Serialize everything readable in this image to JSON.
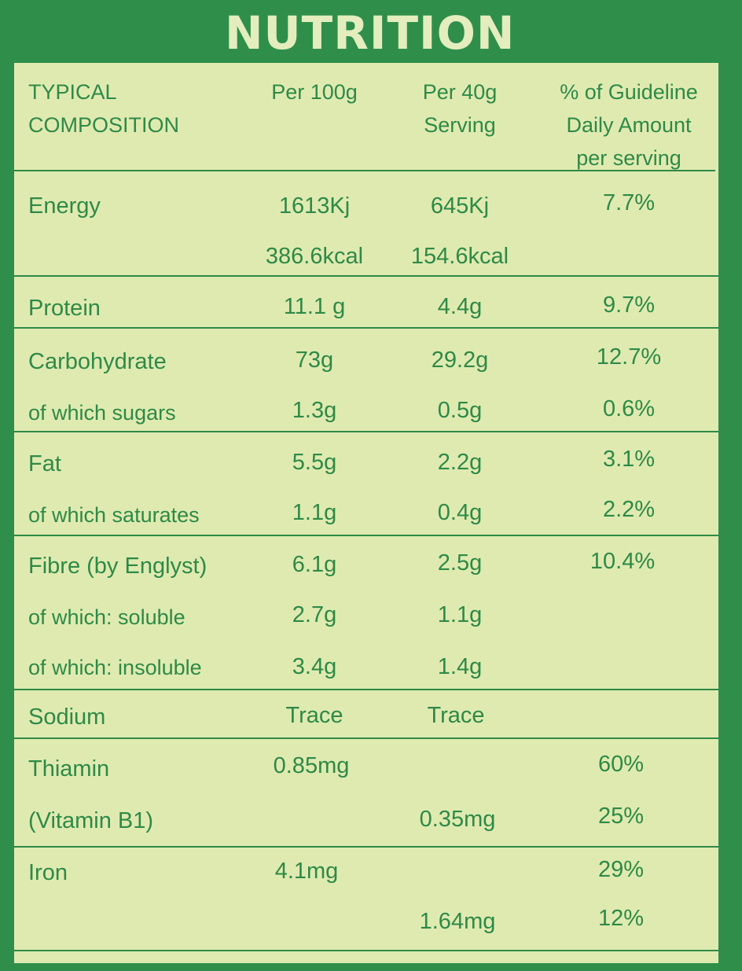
{
  "title": "NUTRITION",
  "header": {
    "composition": "TYPICAL\nCOMPOSITION",
    "per100": "Per 100g",
    "per40": "Per 40g\nServing",
    "gda": "% of Guideline\nDaily Amount\nper serving"
  },
  "rows": [
    {
      "label": "Energy",
      "per100": "1613Kj",
      "per40": "645Kj",
      "gda": "7.7%"
    },
    {
      "label": "",
      "per100": "386.6kcal",
      "per40": "154.6kcal",
      "gda": ""
    },
    {
      "label": "Protein",
      "per100": "11.1 g",
      "per40": "4.4g",
      "gda": "9.7%"
    },
    {
      "label": "Carbohydrate",
      "per100": "73g",
      "per40": "29.2g",
      "gda": "12.7%"
    },
    {
      "label": "of which sugars",
      "per100": "1.3g",
      "per40": "0.5g",
      "gda": "0.6%"
    },
    {
      "label": "Fat",
      "per100": "5.5g",
      "per40": "2.2g",
      "gda": "3.1%"
    },
    {
      "label": "of which saturates",
      "per100": "1.1g",
      "per40": "0.4g",
      "gda": "2.2%"
    },
    {
      "label": "Fibre (by Englyst)",
      "per100": "6.1g",
      "per40": "2.5g",
      "gda": "10.4%"
    },
    {
      "label": "of which: soluble",
      "per100": "2.7g",
      "per40": "1.1g",
      "gda": ""
    },
    {
      "label": "of which: insoluble",
      "per100": "3.4g",
      "per40": "1.4g",
      "gda": ""
    },
    {
      "label": "Sodium",
      "per100": "Trace",
      "per40": "Trace",
      "gda": ""
    },
    {
      "label": "Thiamin",
      "per100": "0.85mg",
      "per40": "",
      "gda": "60%"
    },
    {
      "label": "(Vitamin B1)",
      "per100": "",
      "per40": "0.35mg",
      "gda": "25%"
    },
    {
      "label": "Iron",
      "per100": "4.1mg",
      "per40": "",
      "gda": "29%"
    },
    {
      "label": "",
      "per100": "",
      "per40": "1.64mg",
      "gda": "12%"
    }
  ]
}
